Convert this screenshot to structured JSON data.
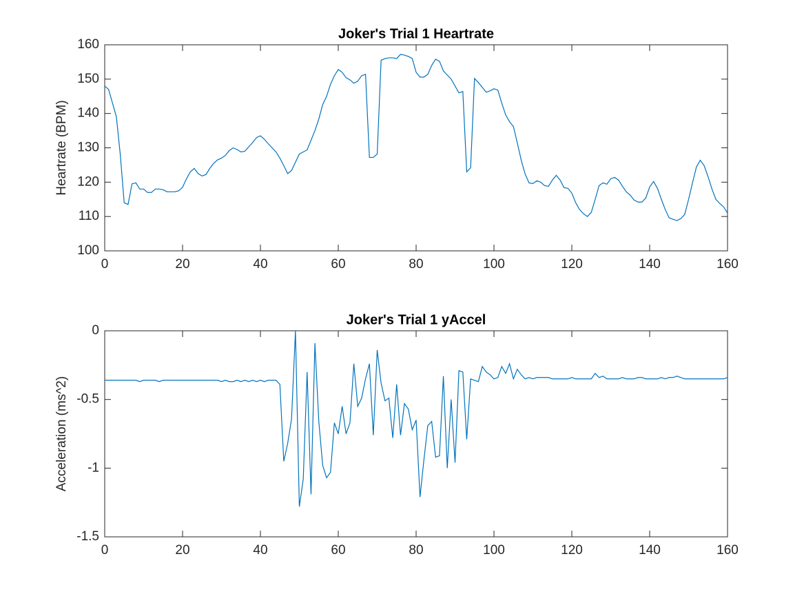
{
  "chart_data": [
    {
      "type": "line",
      "title": "Joker's Trial 1 Heartrate",
      "ylabel": "Heartrate (BPM)",
      "color": "#0072bd",
      "xlim": [
        0,
        160
      ],
      "xticks": [
        0,
        20,
        40,
        60,
        80,
        100,
        120,
        140,
        160
      ],
      "ylim": [
        100,
        160
      ],
      "yticks": [
        100,
        110,
        120,
        130,
        140,
        150,
        160
      ],
      "x": [
        0,
        1,
        2,
        3,
        4,
        5,
        6,
        7,
        8,
        9,
        10,
        11,
        12,
        13,
        14,
        15,
        16,
        17,
        18,
        19,
        20,
        21,
        22,
        23,
        24,
        25,
        26,
        27,
        28,
        29,
        30,
        31,
        32,
        33,
        34,
        35,
        36,
        37,
        38,
        39,
        40,
        41,
        42,
        43,
        44,
        45,
        46,
        47,
        48,
        49,
        50,
        51,
        52,
        53,
        54,
        55,
        56,
        57,
        58,
        59,
        60,
        61,
        62,
        63,
        64,
        65,
        66,
        67,
        68,
        69,
        70,
        71,
        72,
        73,
        74,
        75,
        76,
        77,
        78,
        79,
        80,
        81,
        82,
        83,
        84,
        85,
        86,
        87,
        88,
        89,
        90,
        91,
        92,
        93,
        94,
        95,
        96,
        97,
        98,
        99,
        100,
        101,
        102,
        103,
        104,
        105,
        106,
        107,
        108,
        109,
        110,
        111,
        112,
        113,
        114,
        115,
        116,
        117,
        118,
        119,
        120,
        121,
        122,
        123,
        124,
        125,
        126,
        127,
        128,
        129,
        130,
        131,
        132,
        133,
        134,
        135,
        136,
        137,
        138,
        139,
        140,
        141,
        142,
        143,
        144,
        145,
        146,
        147,
        148,
        149,
        150,
        151,
        152,
        153,
        154,
        155,
        156,
        157,
        158,
        159,
        160
      ],
      "values": [
        148,
        147,
        143,
        139,
        128,
        114,
        113.5,
        119.5,
        119.8,
        118,
        118,
        117,
        117,
        118,
        118,
        117.8,
        117.2,
        117.2,
        117.2,
        117.5,
        118.5,
        121,
        123,
        124,
        122.5,
        121.8,
        122.2,
        124,
        125.5,
        126.5,
        127,
        127.8,
        129.2,
        130,
        129.5,
        128.8,
        129,
        130.3,
        131.5,
        133,
        133.5,
        132.5,
        131.2,
        130,
        128.8,
        127,
        124.8,
        122.5,
        123.4,
        125.8,
        128.2,
        128.8,
        129.4,
        132.2,
        135,
        138.4,
        142.6,
        145,
        148.5,
        151,
        152.8,
        152,
        150.4,
        149.8,
        148.8,
        149.4,
        151,
        151.4,
        127.2,
        127.2,
        128.2,
        155.5,
        156,
        156.2,
        156.2,
        156,
        157.2,
        157,
        156.6,
        156,
        152,
        150.6,
        150.6,
        151.4,
        154,
        155.8,
        155.2,
        152.4,
        151.2,
        150,
        148,
        146,
        146.4,
        123,
        124.2,
        150.2,
        149,
        147.6,
        146.2,
        146.6,
        147.2,
        146.8,
        143,
        139.6,
        137.6,
        136.2,
        131.4,
        126.4,
        122.4,
        119.8,
        119.6,
        120.4,
        120,
        119,
        118.8,
        120.6,
        122,
        120.6,
        118.4,
        118.2,
        116.8,
        114,
        112,
        110.8,
        110,
        111.2,
        115,
        119,
        119.8,
        119.4,
        121,
        121.4,
        120.6,
        118.8,
        117.2,
        116.2,
        114.8,
        114.2,
        114.2,
        115.4,
        118.6,
        120.2,
        118.2,
        115,
        112,
        109.6,
        109.2,
        108.8,
        109.4,
        110.6,
        115,
        119.8,
        124.4,
        126.4,
        124.8,
        121.6,
        118,
        115,
        113.8,
        112.8,
        111
      ]
    },
    {
      "type": "line",
      "title": "Joker's Trial 1 yAccel",
      "ylabel": "Acceleration (ms^2)",
      "color": "#0072bd",
      "xlim": [
        0,
        160
      ],
      "xticks": [
        0,
        20,
        40,
        60,
        80,
        100,
        120,
        140,
        160
      ],
      "ylim": [
        -1.5,
        0
      ],
      "yticks": [
        -1.5,
        -1,
        -0.5,
        0
      ],
      "x": [
        0,
        1,
        2,
        3,
        4,
        5,
        6,
        7,
        8,
        9,
        10,
        11,
        12,
        13,
        14,
        15,
        16,
        17,
        18,
        19,
        20,
        21,
        22,
        23,
        24,
        25,
        26,
        27,
        28,
        29,
        30,
        31,
        32,
        33,
        34,
        35,
        36,
        37,
        38,
        39,
        40,
        41,
        42,
        43,
        44,
        45,
        46,
        47,
        48,
        49,
        50,
        51,
        52,
        53,
        54,
        55,
        56,
        57,
        58,
        59,
        60,
        61,
        62,
        63,
        64,
        65,
        66,
        67,
        68,
        69,
        70,
        71,
        72,
        73,
        74,
        75,
        76,
        77,
        78,
        79,
        80,
        81,
        82,
        83,
        84,
        85,
        86,
        87,
        88,
        89,
        90,
        91,
        92,
        93,
        94,
        95,
        96,
        97,
        98,
        99,
        100,
        101,
        102,
        103,
        104,
        105,
        106,
        107,
        108,
        109,
        110,
        111,
        112,
        113,
        114,
        115,
        116,
        117,
        118,
        119,
        120,
        121,
        122,
        123,
        124,
        125,
        126,
        127,
        128,
        129,
        130,
        131,
        132,
        133,
        134,
        135,
        136,
        137,
        138,
        139,
        140,
        141,
        142,
        143,
        144,
        145,
        146,
        147,
        148,
        149,
        150,
        151,
        152,
        153,
        154,
        155,
        156,
        157,
        158,
        159,
        160
      ],
      "values": [
        -0.36,
        -0.36,
        -0.36,
        -0.36,
        -0.36,
        -0.36,
        -0.36,
        -0.36,
        -0.36,
        -0.37,
        -0.36,
        -0.36,
        -0.36,
        -0.36,
        -0.37,
        -0.36,
        -0.36,
        -0.36,
        -0.36,
        -0.36,
        -0.36,
        -0.36,
        -0.36,
        -0.36,
        -0.36,
        -0.36,
        -0.36,
        -0.36,
        -0.36,
        -0.36,
        -0.37,
        -0.36,
        -0.37,
        -0.37,
        -0.36,
        -0.37,
        -0.36,
        -0.37,
        -0.36,
        -0.37,
        -0.36,
        -0.37,
        -0.36,
        -0.36,
        -0.36,
        -0.39,
        -0.95,
        -0.82,
        -0.64,
        0,
        -1.28,
        -1.08,
        -0.3,
        -1.19,
        -0.09,
        -0.66,
        -0.98,
        -1.07,
        -1.03,
        -0.67,
        -0.75,
        -0.55,
        -0.75,
        -0.67,
        -0.24,
        -0.55,
        -0.49,
        -0.35,
        -0.24,
        -0.76,
        -0.14,
        -0.38,
        -0.51,
        -0.49,
        -0.78,
        -0.39,
        -0.76,
        -0.53,
        -0.57,
        -0.72,
        -0.65,
        -1.21,
        -0.94,
        -0.69,
        -0.66,
        -0.92,
        -0.91,
        -0.33,
        -1,
        -0.5,
        -0.96,
        -0.29,
        -0.3,
        -0.79,
        -0.35,
        -0.36,
        -0.37,
        -0.26,
        -0.3,
        -0.32,
        -0.35,
        -0.34,
        -0.26,
        -0.31,
        -0.24,
        -0.35,
        -0.28,
        -0.32,
        -0.35,
        -0.34,
        -0.35,
        -0.34,
        -0.34,
        -0.34,
        -0.34,
        -0.35,
        -0.35,
        -0.35,
        -0.35,
        -0.35,
        -0.34,
        -0.35,
        -0.35,
        -0.35,
        -0.35,
        -0.35,
        -0.31,
        -0.34,
        -0.33,
        -0.35,
        -0.35,
        -0.35,
        -0.35,
        -0.34,
        -0.35,
        -0.35,
        -0.35,
        -0.34,
        -0.34,
        -0.35,
        -0.35,
        -0.35,
        -0.35,
        -0.34,
        -0.35,
        -0.34,
        -0.34,
        -0.33,
        -0.34,
        -0.35,
        -0.35,
        -0.35,
        -0.35,
        -0.35,
        -0.35,
        -0.35,
        -0.35,
        -0.35,
        -0.35,
        -0.35,
        -0.34
      ]
    }
  ]
}
